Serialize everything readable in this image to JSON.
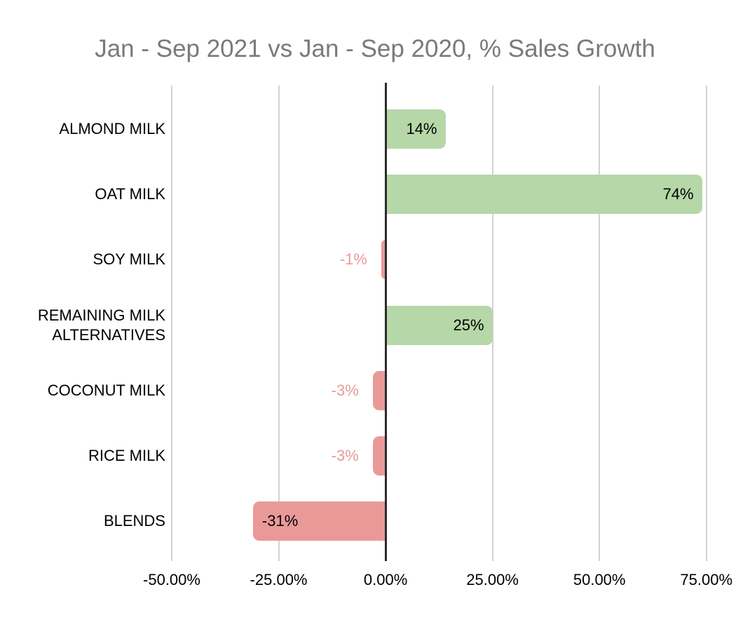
{
  "chart_data": {
    "type": "bar",
    "orientation": "horizontal",
    "title": "Jan - Sep 2021 vs Jan - Sep 2020, % Sales Growth",
    "categories": [
      "ALMOND MILK",
      "OAT MILK",
      "SOY MILK",
      "REMAINING MILK ALTERNATIVES",
      "COCONUT MILK",
      "RICE MILK",
      "BLENDS"
    ],
    "values": [
      14,
      74,
      -1,
      25,
      -3,
      -3,
      -31
    ],
    "bar_labels": [
      "14%",
      "74%",
      "-1%",
      "25%",
      "-3%",
      "-3%",
      "-31%"
    ],
    "x_ticks": [
      {
        "value": -50,
        "label": "-50.00%"
      },
      {
        "value": -25,
        "label": "-25.00%"
      },
      {
        "value": 0,
        "label": "0.00%"
      },
      {
        "value": 25,
        "label": "25.00%"
      },
      {
        "value": 50,
        "label": "50.00%"
      },
      {
        "value": 75,
        "label": "75.00%"
      }
    ],
    "xlim": [
      -50,
      81.6
    ],
    "grid": "vertical-only",
    "legend": "none",
    "colors": {
      "positive_bar": "#b6d7a8",
      "negative_bar": "#ea9999",
      "inside_value_label": "#000000",
      "outside_value_label": "#ea9999",
      "title": "#7a7a7a",
      "category_label": "#000000",
      "tick_label": "#000000",
      "gridline": "#d2d2d2",
      "zero_axis": "#2b2b2b",
      "background": "#ffffff"
    }
  }
}
